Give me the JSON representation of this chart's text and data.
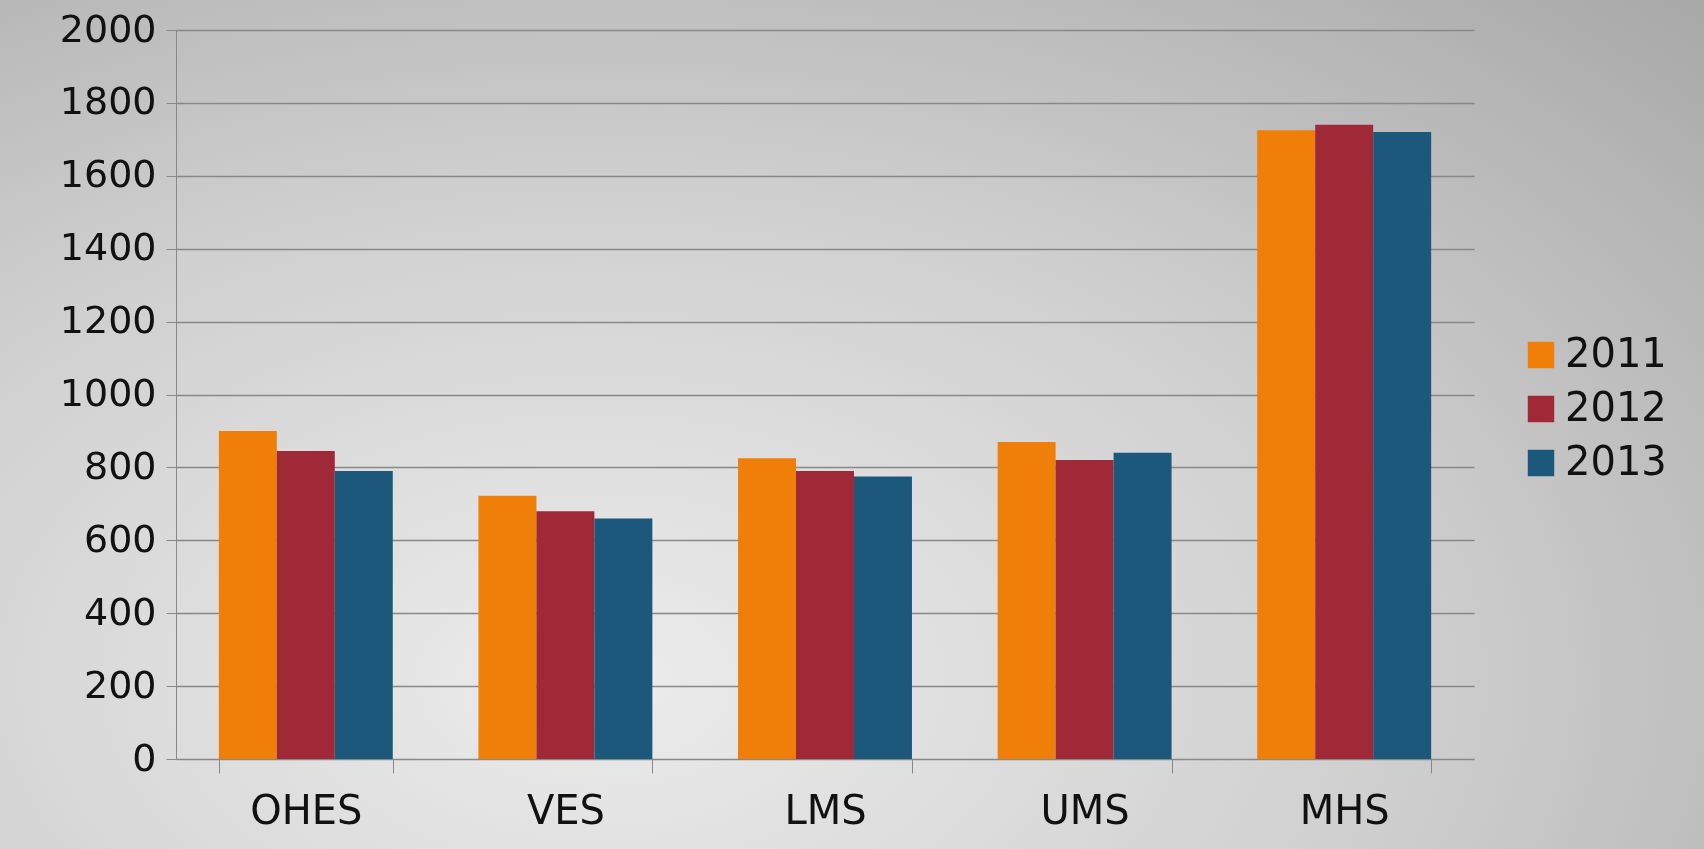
{
  "chart_data": {
    "type": "bar",
    "categories": [
      "OHES",
      "VES",
      "LMS",
      "UMS",
      "MHS"
    ],
    "series": [
      {
        "name": "2011",
        "color": "#f07f09",
        "values": [
          900,
          722,
          825,
          870,
          1725
        ]
      },
      {
        "name": "2012",
        "color": "#9f2936",
        "values": [
          845,
          680,
          790,
          820,
          1740
        ]
      },
      {
        "name": "2013",
        "color": "#1b587c",
        "values": [
          790,
          660,
          775,
          840,
          1720
        ]
      }
    ],
    "ylim": [
      0,
      2000
    ],
    "yticks": [
      0,
      200,
      400,
      600,
      800,
      1000,
      1200,
      1400,
      1600,
      1800,
      2000
    ],
    "grid": "y",
    "legend": "right"
  }
}
